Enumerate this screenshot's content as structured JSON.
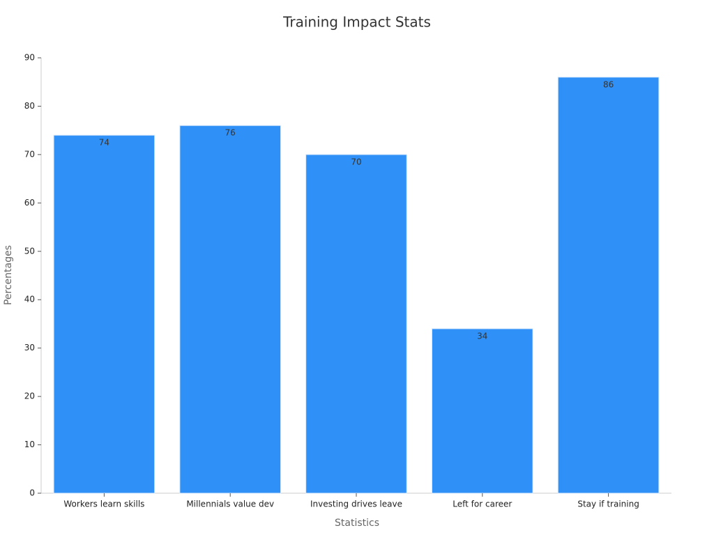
{
  "chart_data": {
    "type": "bar",
    "title": "Training Impact Stats",
    "x_label": "Statistics",
    "y_label": "Percentages",
    "categories": [
      "Workers learn skills",
      "Millennials value dev",
      "Investing drives leave",
      "Left for career",
      "Stay if training"
    ],
    "values": [
      74,
      76,
      70,
      34,
      86
    ],
    "color": "#2f91f8",
    "ylim": [
      0,
      90
    ],
    "yticks": [
      0,
      10,
      20,
      30,
      40,
      50,
      60,
      70,
      80,
      90
    ],
    "grid": false
  }
}
